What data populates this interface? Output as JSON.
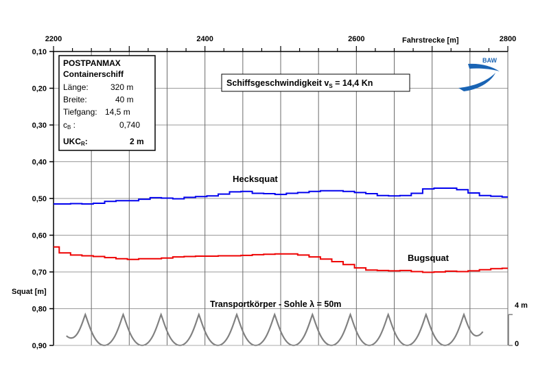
{
  "chart_data": {
    "type": "line",
    "x_axis": {
      "label": "Fahrstrecke [m]",
      "range": [
        2200,
        2800
      ],
      "ticks": [
        "2200",
        "2400",
        "2600",
        "2800"
      ],
      "tick_values": [
        2200,
        2400,
        2600,
        2800
      ],
      "position": "top"
    },
    "y_axis": {
      "label": "Squat [m]",
      "range": [
        0.1,
        0.9
      ],
      "inverted": true,
      "ticks": [
        "0,10",
        "0,20",
        "0,30",
        "0,40",
        "0,50",
        "0,60",
        "0,70",
        "0,80",
        "0,90"
      ],
      "tick_values": [
        0.1,
        0.2,
        0.3,
        0.4,
        0.5,
        0.6,
        0.7,
        0.8,
        0.9
      ]
    },
    "grid": true,
    "series": [
      {
        "name": "Hecksquat",
        "color": "#0000ee",
        "x": [
          2200,
          2215,
          2230,
          2245,
          2260,
          2275,
          2290,
          2305,
          2320,
          2335,
          2350,
          2365,
          2380,
          2395,
          2410,
          2425,
          2440,
          2455,
          2470,
          2485,
          2500,
          2515,
          2530,
          2545,
          2560,
          2575,
          2590,
          2605,
          2620,
          2635,
          2650,
          2665,
          2680,
          2695,
          2710,
          2725,
          2740,
          2755,
          2770,
          2785,
          2800
        ],
        "y": [
          0.515,
          0.515,
          0.514,
          0.515,
          0.513,
          0.508,
          0.506,
          0.506,
          0.502,
          0.498,
          0.499,
          0.501,
          0.497,
          0.495,
          0.493,
          0.488,
          0.482,
          0.481,
          0.486,
          0.487,
          0.489,
          0.486,
          0.484,
          0.481,
          0.479,
          0.479,
          0.481,
          0.484,
          0.487,
          0.492,
          0.493,
          0.492,
          0.486,
          0.474,
          0.472,
          0.472,
          0.476,
          0.485,
          0.492,
          0.494,
          0.496
        ]
      },
      {
        "name": "Bugsquat",
        "color": "#ee0000",
        "x": [
          2200,
          2215,
          2230,
          2245,
          2260,
          2275,
          2290,
          2305,
          2320,
          2335,
          2350,
          2365,
          2380,
          2395,
          2410,
          2425,
          2440,
          2455,
          2470,
          2485,
          2500,
          2515,
          2530,
          2545,
          2560,
          2575,
          2590,
          2605,
          2620,
          2635,
          2650,
          2665,
          2680,
          2695,
          2710,
          2725,
          2740,
          2755,
          2770,
          2785,
          2800
        ],
        "y": [
          0.632,
          0.648,
          0.654,
          0.656,
          0.658,
          0.661,
          0.664,
          0.666,
          0.664,
          0.664,
          0.662,
          0.659,
          0.658,
          0.657,
          0.657,
          0.656,
          0.656,
          0.655,
          0.653,
          0.652,
          0.651,
          0.651,
          0.654,
          0.659,
          0.665,
          0.672,
          0.68,
          0.689,
          0.695,
          0.696,
          0.697,
          0.696,
          0.699,
          0.701,
          0.7,
          0.698,
          0.699,
          0.697,
          0.694,
          0.691,
          0.69
        ]
      }
    ],
    "annotations": {
      "title": "Schiffsgeschwindigkeit v",
      "title_sub": "S",
      "title_value": " = 14,4 Kn",
      "hecksquat_label": "Hecksquat",
      "bugsquat_label": "Bugsquat",
      "sohle_label": "Transportkörper - Sohle  λ = 50m",
      "sohle_top": "4 m",
      "sohle_bottom": "0"
    },
    "sohle": {
      "color": "#808080",
      "wavelength_m": 50,
      "height_m": 4,
      "crest_x": [
        2242,
        2292,
        2342,
        2392,
        2442,
        2492,
        2542,
        2592,
        2642,
        2692,
        2742
      ]
    }
  },
  "info_box": {
    "line1": "POSTPANMAX",
    "line2": "Containerschiff",
    "laenge_label": "Länge:",
    "laenge_value": "320 m",
    "breite_label": "Breite:",
    "breite_value": "40 m",
    "tiefgang_label": "Tiefgang:",
    "tiefgang_value": "14,5 m",
    "cb_label": "c",
    "cb_sub": "B",
    "cb_colon": " :",
    "cb_value": "0,740",
    "ukc_label": "UKC",
    "ukc_sub": "R",
    "ukc_colon": ":",
    "ukc_value": "2 m"
  },
  "logo": {
    "text": "BAW",
    "color": "#1a64b4"
  }
}
